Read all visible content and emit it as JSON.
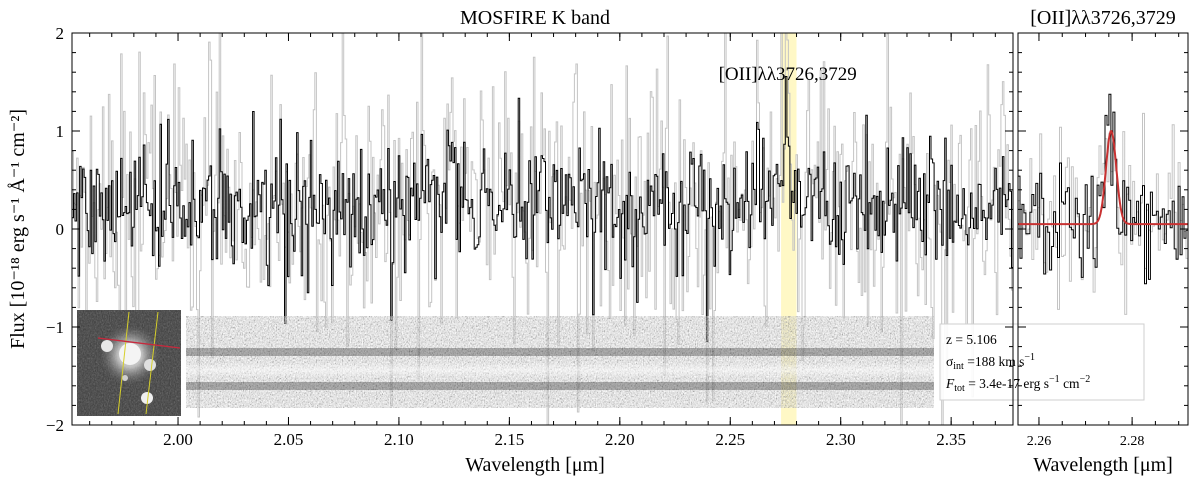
{
  "chart_data": [
    {
      "type": "line",
      "title": "MOSFIRE K band",
      "xlabel": "Wavelength [μm]",
      "ylabel": "Flux [10⁻¹⁸ erg s⁻¹ Å⁻¹ cm⁻²]",
      "xlim": [
        1.952,
        2.378
      ],
      "ylim": [
        -2,
        2
      ],
      "xticks": [
        "2.00",
        "2.05",
        "2.10",
        "2.15",
        "2.20",
        "2.25",
        "2.30",
        "2.35"
      ],
      "xtick_values": [
        2.0,
        2.05,
        2.1,
        2.15,
        2.2,
        2.25,
        2.3,
        2.35
      ],
      "yticks": [
        "2",
        "1",
        "0",
        "−1",
        "−2"
      ],
      "ytick_values": [
        2,
        1,
        0,
        -1,
        -2
      ],
      "highlight_band": {
        "x_min": 2.273,
        "x_max": 2.28,
        "color": "#fff8c6"
      },
      "line_annotation": {
        "text": "[OII]λλ3726,3729",
        "x": 2.276,
        "y": 1.52
      },
      "series": [
        {
          "role": "flux",
          "color": "#000000",
          "x_min": 1.952,
          "x_max": 2.378,
          "continuum": 0.22,
          "rms": 0.34
        },
        {
          "role": "flux error envelope",
          "color": "#c4c4c4",
          "x_min": 1.952,
          "x_max": 2.378
        }
      ],
      "features": [
        {
          "kind": "emission",
          "x": 2.2755,
          "peak": 1.05,
          "sigma_um": 0.0012
        },
        {
          "kind": "absorption",
          "x": 2.003,
          "depth": -0.45
        },
        {
          "kind": "absorption",
          "x": 2.041,
          "depth": -0.95
        },
        {
          "kind": "absorption",
          "x": 2.188,
          "depth": -0.7
        },
        {
          "kind": "absorption",
          "x": 2.206,
          "depth": -0.65
        },
        {
          "kind": "absorption",
          "x": 2.25,
          "depth": -0.6
        }
      ],
      "inset": {
        "legend_lines": [
          "z = 5.106",
          "σint =188 km s−1",
          "Ftot = 3.4e-17 erg s−1 cm−2"
        ],
        "legend_parts": {
          "z": "z = 5.106",
          "sigma_sym": "σ",
          "sigma_sub": "int",
          "sigma_val": " =188 km s",
          "sigma_exp": "−1",
          "flux_sym": "F",
          "flux_sub": "tot",
          "flux_val": " = 3.4e-17 erg s",
          "flux_exp1": "−1",
          "flux_mid": " cm",
          "flux_exp2": "−2"
        }
      }
    },
    {
      "type": "line",
      "title": "[OII]λλ3726,3729",
      "xlabel": "Wavelength [μm]",
      "xlim": [
        2.2555,
        2.292
      ],
      "ylim": [
        -2,
        2
      ],
      "xticks": [
        "2.26",
        "2.28"
      ],
      "xtick_values": [
        2.26,
        2.28
      ],
      "series": [
        {
          "role": "flux",
          "color": "#000000"
        },
        {
          "role": "flux error envelope",
          "color": "#c4c4c4"
        },
        {
          "role": "gaussian fit",
          "color": "#c83232",
          "baseline": 0.05,
          "amplitude": 0.95,
          "center": 2.2755,
          "sigma_um": 0.0011
        }
      ]
    }
  ]
}
